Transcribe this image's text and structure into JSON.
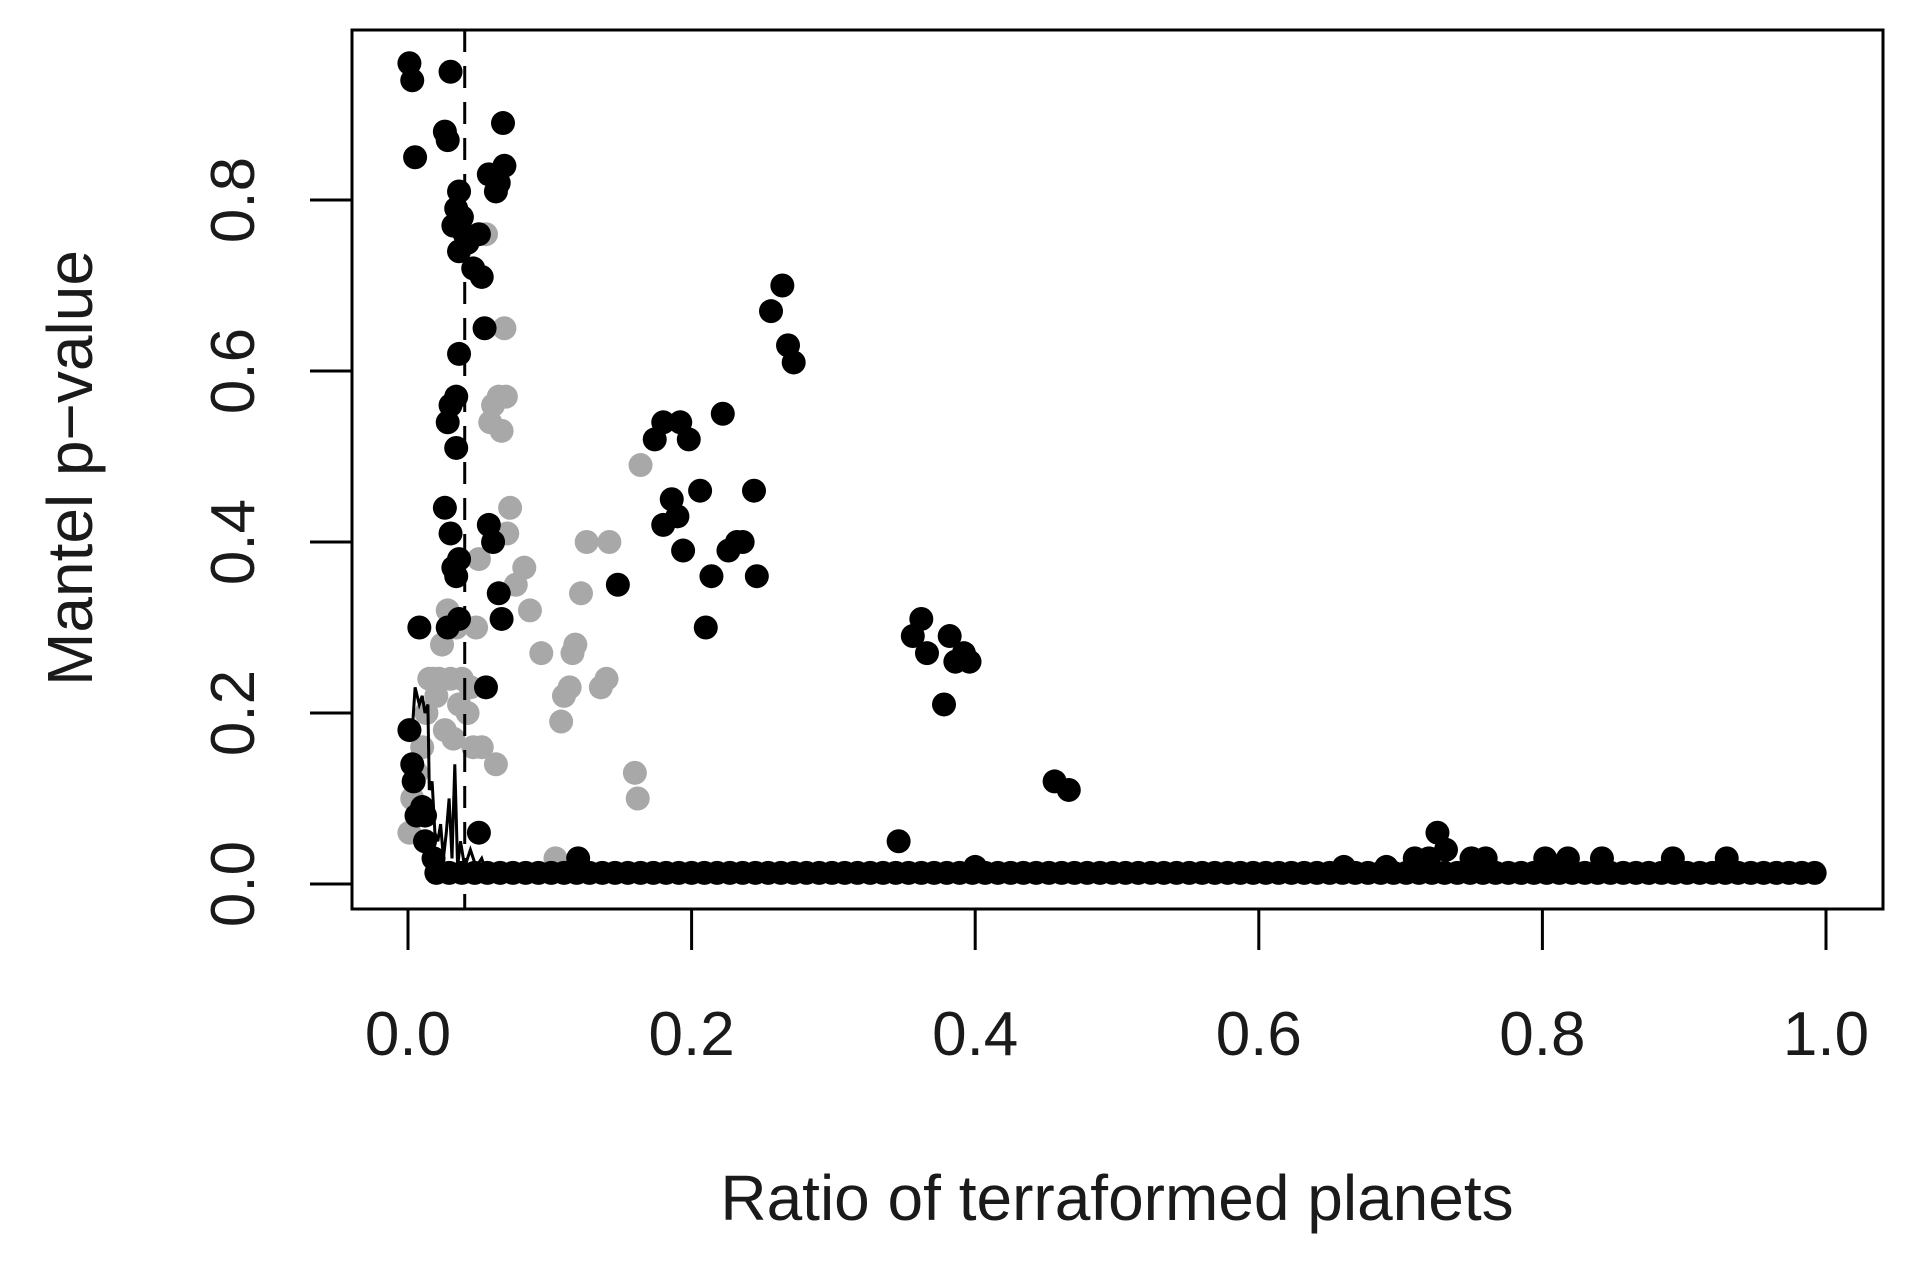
{
  "chart_data": {
    "type": "scatter",
    "title": "",
    "xlabel": "Ratio of terraformed planets",
    "ylabel": "Mantel p−value",
    "xlim": [
      -0.04,
      1.04
    ],
    "ylim": [
      -0.03,
      0.99
    ],
    "x_ticks": [
      0.0,
      0.2,
      0.4,
      0.6,
      0.8,
      1.0
    ],
    "x_tick_labels": [
      "0.0",
      "0.2",
      "0.4",
      "0.6",
      "0.8",
      "1.0"
    ],
    "y_ticks": [
      0.0,
      0.2,
      0.4,
      0.6,
      0.8
    ],
    "y_tick_labels": [
      "0.0",
      "0.2",
      "0.4",
      "0.6",
      "0.8"
    ],
    "grid": false,
    "legend": null,
    "reference_line": {
      "orientation": "vertical",
      "x": 0.04,
      "style": "dashed",
      "color": "#000000"
    },
    "colors": {
      "black_series": "#000000",
      "grey_series": "#a8a8a8",
      "frame": "#000000",
      "background": "#ffffff"
    },
    "series": [
      {
        "name": "grey points",
        "color": "#a8a8a8",
        "points": [
          [
            0.001,
            0.06
          ],
          [
            0.003,
            0.1
          ],
          [
            0.006,
            0.13
          ],
          [
            0.01,
            0.16
          ],
          [
            0.013,
            0.2
          ],
          [
            0.015,
            0.24
          ],
          [
            0.018,
            0.24
          ],
          [
            0.02,
            0.22
          ],
          [
            0.022,
            0.24
          ],
          [
            0.024,
            0.28
          ],
          [
            0.026,
            0.18
          ],
          [
            0.028,
            0.32
          ],
          [
            0.03,
            0.24
          ],
          [
            0.032,
            0.17
          ],
          [
            0.034,
            0.3
          ],
          [
            0.036,
            0.21
          ],
          [
            0.038,
            0.24
          ],
          [
            0.042,
            0.2
          ],
          [
            0.044,
            0.23
          ],
          [
            0.046,
            0.16
          ],
          [
            0.048,
            0.3
          ],
          [
            0.05,
            0.38
          ],
          [
            0.052,
            0.16
          ],
          [
            0.055,
            0.76
          ],
          [
            0.058,
            0.54
          ],
          [
            0.06,
            0.56
          ],
          [
            0.062,
            0.14
          ],
          [
            0.064,
            0.57
          ],
          [
            0.066,
            0.53
          ],
          [
            0.068,
            0.65
          ],
          [
            0.069,
            0.57
          ],
          [
            0.07,
            0.41
          ],
          [
            0.072,
            0.44
          ],
          [
            0.076,
            0.35
          ],
          [
            0.082,
            0.37
          ],
          [
            0.086,
            0.32
          ],
          [
            0.094,
            0.27
          ],
          [
            0.108,
            0.19
          ],
          [
            0.11,
            0.22
          ],
          [
            0.114,
            0.23
          ],
          [
            0.116,
            0.27
          ],
          [
            0.118,
            0.28
          ],
          [
            0.122,
            0.34
          ],
          [
            0.126,
            0.4
          ],
          [
            0.136,
            0.23
          ],
          [
            0.14,
            0.24
          ],
          [
            0.142,
            0.4
          ],
          [
            0.16,
            0.13
          ],
          [
            0.162,
            0.1
          ],
          [
            0.164,
            0.49
          ],
          [
            0.104,
            0.03
          ]
        ]
      },
      {
        "name": "black points",
        "color": "#000000",
        "points": [
          [
            0.001,
            0.96
          ],
          [
            0.003,
            0.94
          ],
          [
            0.005,
            0.85
          ],
          [
            0.03,
            0.95
          ],
          [
            0.026,
            0.88
          ],
          [
            0.028,
            0.87
          ],
          [
            0.067,
            0.89
          ],
          [
            0.068,
            0.84
          ],
          [
            0.057,
            0.83
          ],
          [
            0.062,
            0.81
          ],
          [
            0.064,
            0.82
          ],
          [
            0.036,
            0.81
          ],
          [
            0.034,
            0.79
          ],
          [
            0.038,
            0.78
          ],
          [
            0.032,
            0.77
          ],
          [
            0.04,
            0.76
          ],
          [
            0.036,
            0.74
          ],
          [
            0.042,
            0.75
          ],
          [
            0.05,
            0.76
          ],
          [
            0.046,
            0.72
          ],
          [
            0.052,
            0.71
          ],
          [
            0.054,
            0.65
          ],
          [
            0.036,
            0.62
          ],
          [
            0.034,
            0.57
          ],
          [
            0.03,
            0.56
          ],
          [
            0.028,
            0.54
          ],
          [
            0.034,
            0.51
          ],
          [
            0.026,
            0.44
          ],
          [
            0.03,
            0.41
          ],
          [
            0.036,
            0.38
          ],
          [
            0.034,
            0.36
          ],
          [
            0.032,
            0.37
          ],
          [
            0.057,
            0.42
          ],
          [
            0.06,
            0.4
          ],
          [
            0.064,
            0.34
          ],
          [
            0.066,
            0.31
          ],
          [
            0.028,
            0.3
          ],
          [
            0.008,
            0.3
          ],
          [
            0.036,
            0.31
          ],
          [
            0.055,
            0.23
          ],
          [
            0.001,
            0.18
          ],
          [
            0.003,
            0.14
          ],
          [
            0.004,
            0.12
          ],
          [
            0.006,
            0.08
          ],
          [
            0.01,
            0.09
          ],
          [
            0.012,
            0.08
          ],
          [
            0.012,
            0.05
          ],
          [
            0.018,
            0.03
          ],
          [
            0.05,
            0.06
          ],
          [
            0.148,
            0.35
          ],
          [
            0.12,
            0.03
          ],
          [
            0.174,
            0.52
          ],
          [
            0.18,
            0.54
          ],
          [
            0.192,
            0.54
          ],
          [
            0.198,
            0.52
          ],
          [
            0.186,
            0.45
          ],
          [
            0.19,
            0.43
          ],
          [
            0.18,
            0.42
          ],
          [
            0.194,
            0.39
          ],
          [
            0.206,
            0.46
          ],
          [
            0.214,
            0.36
          ],
          [
            0.222,
            0.55
          ],
          [
            0.226,
            0.39
          ],
          [
            0.232,
            0.4
          ],
          [
            0.236,
            0.4
          ],
          [
            0.21,
            0.3
          ],
          [
            0.244,
            0.46
          ],
          [
            0.246,
            0.36
          ],
          [
            0.256,
            0.67
          ],
          [
            0.264,
            0.7
          ],
          [
            0.268,
            0.63
          ],
          [
            0.272,
            0.61
          ],
          [
            0.346,
            0.05
          ],
          [
            0.356,
            0.29
          ],
          [
            0.362,
            0.31
          ],
          [
            0.366,
            0.27
          ],
          [
            0.382,
            0.29
          ],
          [
            0.386,
            0.26
          ],
          [
            0.392,
            0.27
          ],
          [
            0.396,
            0.26
          ],
          [
            0.378,
            0.21
          ],
          [
            0.456,
            0.12
          ],
          [
            0.466,
            0.11
          ],
          [
            0.4,
            0.02
          ],
          [
            0.71,
            0.03
          ],
          [
            0.726,
            0.06
          ],
          [
            0.732,
            0.04
          ],
          [
            0.72,
            0.03
          ],
          [
            0.75,
            0.03
          ],
          [
            0.76,
            0.03
          ],
          [
            0.802,
            0.03
          ],
          [
            0.818,
            0.03
          ],
          [
            0.842,
            0.03
          ],
          [
            0.892,
            0.03
          ],
          [
            0.93,
            0.03
          ],
          [
            0.66,
            0.02
          ],
          [
            0.69,
            0.02
          ]
        ]
      },
      {
        "name": "baseline band (p near 0)",
        "color": "#000000",
        "x_range": [
          0.02,
          1.0
        ],
        "y_value": 0.01,
        "approx_spacing": 0.009
      },
      {
        "name": "smoothed line",
        "type": "line",
        "color": "#000000",
        "points": [
          [
            0.003,
            0.18
          ],
          [
            0.005,
            0.23
          ],
          [
            0.008,
            0.21
          ],
          [
            0.01,
            0.22
          ],
          [
            0.012,
            0.2
          ],
          [
            0.014,
            0.21
          ],
          [
            0.015,
            0.11
          ],
          [
            0.017,
            0.12
          ],
          [
            0.019,
            0.06
          ],
          [
            0.021,
            0.05
          ],
          [
            0.023,
            0.07
          ],
          [
            0.025,
            0.03
          ],
          [
            0.027,
            0.06
          ],
          [
            0.029,
            0.1
          ],
          [
            0.031,
            0.03
          ],
          [
            0.033,
            0.14
          ],
          [
            0.035,
            0.02
          ],
          [
            0.037,
            0.05
          ],
          [
            0.04,
            0.02
          ],
          [
            0.044,
            0.04
          ],
          [
            0.048,
            0.02
          ],
          [
            0.052,
            0.03
          ],
          [
            0.056,
            0.01
          ]
        ]
      }
    ],
    "point_radius_px": 12
  }
}
